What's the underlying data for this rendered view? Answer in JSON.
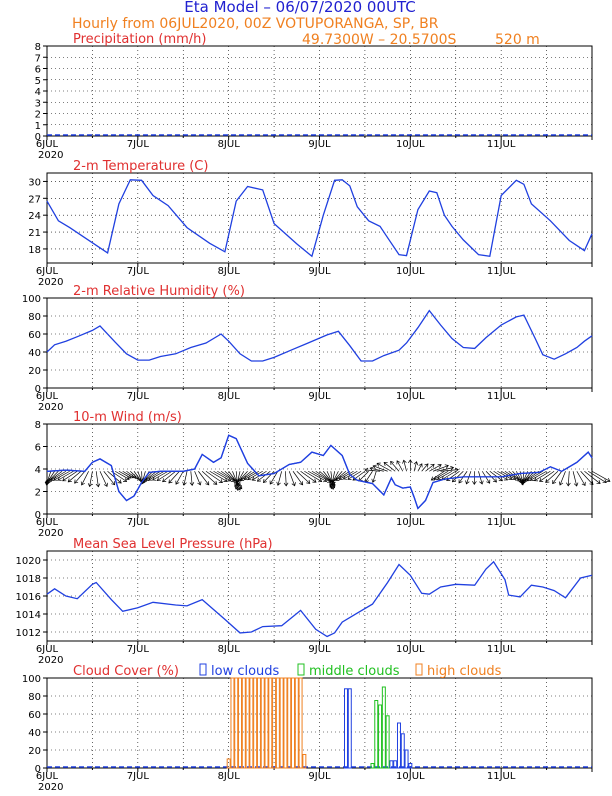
{
  "header": {
    "title": "Eta Model – 06/07/2020 00UTC",
    "subtitle": "Hourly from 06JUL2020, 00Z   VOTUPORANGA, SP, BR",
    "coords": "49.7300W – 20.5700S",
    "elevation": "520  m"
  },
  "colors": {
    "title": "#2020d0",
    "panel_title": "#e03030",
    "subtitle": "#f08020",
    "line": "#2040e0",
    "low": "#2040e0",
    "middle": "#20c020",
    "high": "#f08020",
    "arrow": "#000000"
  },
  "x_ticks": [
    "6JUL",
    "7JUL",
    "8JUL",
    "9JUL",
    "10JUL",
    "11JUL"
  ],
  "x_year": "2020",
  "chart_data": [
    {
      "type": "bar",
      "title": "Precipitation (mm/h)",
      "ylim": [
        0,
        8
      ],
      "yticks": [
        0,
        1,
        2,
        3,
        4,
        5,
        6,
        7,
        8
      ],
      "x": [
        0,
        135
      ],
      "values": [
        0,
        0
      ]
    },
    {
      "type": "line",
      "title": "2-m Temperature (C)",
      "ylim": [
        15.5,
        31.5
      ],
      "yticks": [
        18,
        21,
        24,
        27,
        30
      ],
      "points": [
        [
          0,
          26.5
        ],
        [
          3,
          23
        ],
        [
          6,
          21.8
        ],
        [
          10,
          20
        ],
        [
          16,
          17.3
        ],
        [
          19,
          26
        ],
        [
          22,
          30.3
        ],
        [
          25,
          30.2
        ],
        [
          28,
          27.5
        ],
        [
          32,
          25.7
        ],
        [
          37,
          21.8
        ],
        [
          43,
          19
        ],
        [
          47,
          17.5
        ],
        [
          50,
          26.5
        ],
        [
          53,
          29.1
        ],
        [
          57,
          28.5
        ],
        [
          60,
          22.5
        ],
        [
          66,
          18.9
        ],
        [
          70,
          16.7
        ],
        [
          73,
          24
        ],
        [
          76,
          30.2
        ],
        [
          78,
          30.3
        ],
        [
          80,
          29.2
        ],
        [
          82,
          25.5
        ],
        [
          85,
          23
        ],
        [
          88,
          22
        ],
        [
          90,
          20
        ],
        [
          93,
          17
        ],
        [
          95,
          16.8
        ],
        [
          98,
          25
        ],
        [
          101,
          28.3
        ],
        [
          103,
          28
        ],
        [
          105,
          24
        ],
        [
          107,
          22
        ],
        [
          110,
          19.6
        ],
        [
          114,
          17
        ],
        [
          117,
          16.7
        ],
        [
          120,
          27.5
        ],
        [
          124,
          30.2
        ],
        [
          126,
          29.5
        ],
        [
          128,
          26
        ],
        [
          133,
          23
        ],
        [
          138,
          19.5
        ],
        [
          142,
          17.7
        ],
        [
          144,
          20.7
        ]
      ]
    },
    {
      "type": "line",
      "title": "2-m Relative Humidity (%)",
      "ylim": [
        0,
        100
      ],
      "yticks": [
        0,
        20,
        40,
        60,
        80,
        100
      ],
      "points": [
        [
          0,
          40
        ],
        [
          2,
          48
        ],
        [
          5,
          52
        ],
        [
          8,
          57
        ],
        [
          12,
          64
        ],
        [
          14,
          69
        ],
        [
          18,
          51
        ],
        [
          21,
          38
        ],
        [
          24,
          31
        ],
        [
          27,
          31
        ],
        [
          30,
          35
        ],
        [
          34,
          38
        ],
        [
          38,
          45
        ],
        [
          42,
          50
        ],
        [
          46,
          60
        ],
        [
          48,
          52
        ],
        [
          51,
          38
        ],
        [
          54,
          30
        ],
        [
          57,
          30
        ],
        [
          60,
          34
        ],
        [
          65,
          43
        ],
        [
          69,
          50
        ],
        [
          74,
          59
        ],
        [
          77,
          63
        ],
        [
          80,
          47
        ],
        [
          83,
          30
        ],
        [
          86,
          30
        ],
        [
          89,
          36
        ],
        [
          93,
          42
        ],
        [
          95,
          50
        ],
        [
          98,
          67
        ],
        [
          101,
          86
        ],
        [
          104,
          70
        ],
        [
          107,
          55
        ],
        [
          110,
          45
        ],
        [
          113,
          44
        ],
        [
          116,
          56
        ],
        [
          120,
          70
        ],
        [
          124,
          79
        ],
        [
          126,
          81
        ],
        [
          129,
          55
        ],
        [
          131,
          37
        ],
        [
          134,
          32
        ],
        [
          137,
          38
        ],
        [
          140,
          45
        ],
        [
          142,
          52
        ],
        [
          144,
          58
        ]
      ]
    },
    {
      "type": "line",
      "title": "10-m Wind (m/s)",
      "ylim": [
        0,
        8
      ],
      "yticks": [
        0,
        2,
        4,
        6,
        8
      ],
      "points": [
        [
          0,
          3.8
        ],
        [
          5,
          3.9
        ],
        [
          10,
          3.8
        ],
        [
          12,
          4.6
        ],
        [
          14,
          4.9
        ],
        [
          17,
          4.3
        ],
        [
          19,
          2
        ],
        [
          21,
          1.2
        ],
        [
          23,
          1.6
        ],
        [
          25,
          2.8
        ],
        [
          27,
          3.7
        ],
        [
          30,
          3.8
        ],
        [
          36,
          3.8
        ],
        [
          39,
          4
        ],
        [
          41,
          5.3
        ],
        [
          44,
          4.6
        ],
        [
          46,
          5
        ],
        [
          48,
          7
        ],
        [
          50,
          6.7
        ],
        [
          53,
          4.5
        ],
        [
          56,
          3.4
        ],
        [
          60,
          3.6
        ],
        [
          64,
          4.4
        ],
        [
          67,
          4.6
        ],
        [
          70,
          5.5
        ],
        [
          73,
          5.2
        ],
        [
          75,
          6.1
        ],
        [
          78,
          5.2
        ],
        [
          80,
          3.5
        ],
        [
          82,
          3
        ],
        [
          86,
          2.7
        ],
        [
          89,
          1.7
        ],
        [
          91,
          3.2
        ],
        [
          92,
          2.6
        ],
        [
          94,
          2.3
        ],
        [
          96,
          2.4
        ],
        [
          97,
          1.5
        ],
        [
          98,
          0.5
        ],
        [
          100,
          1.2
        ],
        [
          102,
          2.8
        ],
        [
          105,
          3.1
        ],
        [
          110,
          3.3
        ],
        [
          120,
          3.3
        ],
        [
          125,
          3.6
        ],
        [
          130,
          3.7
        ],
        [
          133,
          4.2
        ],
        [
          136,
          3.8
        ],
        [
          140,
          4.6
        ],
        [
          143,
          5.5
        ],
        [
          144,
          5
        ]
      ],
      "arrow_every_hours": 1
    },
    {
      "type": "line",
      "title": "Mean Sea Level Pressure (hPa)",
      "ylim": [
        1011,
        1021
      ],
      "yticks": [
        1012,
        1014,
        1016,
        1018,
        1020
      ],
      "points": [
        [
          0,
          1016.2
        ],
        [
          2,
          1016.8
        ],
        [
          5,
          1016
        ],
        [
          8,
          1015.7
        ],
        [
          12,
          1017.3
        ],
        [
          13,
          1017.5
        ],
        [
          17,
          1015.6
        ],
        [
          20,
          1014.3
        ],
        [
          24,
          1014.7
        ],
        [
          28,
          1015.3
        ],
        [
          34,
          1015
        ],
        [
          37,
          1014.9
        ],
        [
          41,
          1015.6
        ],
        [
          47,
          1013.4
        ],
        [
          51,
          1011.9
        ],
        [
          54,
          1012
        ],
        [
          57,
          1012.6
        ],
        [
          62,
          1012.7
        ],
        [
          67,
          1014.4
        ],
        [
          71,
          1012.3
        ],
        [
          74,
          1011.5
        ],
        [
          76,
          1011.9
        ],
        [
          78,
          1013.1
        ],
        [
          82,
          1014.1
        ],
        [
          86,
          1015.1
        ],
        [
          90,
          1017.5
        ],
        [
          93,
          1019.5
        ],
        [
          96,
          1018.3
        ],
        [
          99,
          1016.3
        ],
        [
          101,
          1016.2
        ],
        [
          104,
          1017
        ],
        [
          108,
          1017.3
        ],
        [
          113,
          1017.2
        ],
        [
          116,
          1019
        ],
        [
          118,
          1019.8
        ],
        [
          121,
          1017.8
        ],
        [
          122,
          1016.1
        ],
        [
          125,
          1015.9
        ],
        [
          128,
          1017.2
        ],
        [
          131,
          1017
        ],
        [
          134,
          1016.6
        ],
        [
          137,
          1015.8
        ],
        [
          141,
          1018
        ],
        [
          144,
          1018.3
        ]
      ]
    },
    {
      "type": "bar",
      "title": "Cloud Cover (%)",
      "legend": [
        "low clouds",
        "middle clouds",
        "high clouds"
      ],
      "ylim": [
        0,
        100
      ],
      "yticks": [
        0,
        20,
        40,
        60,
        80,
        100
      ],
      "series": [
        {
          "name": "low clouds",
          "bars": [
            [
              78,
              0
            ],
            [
              79,
              88
            ],
            [
              80,
              88
            ],
            [
              81,
              0
            ],
            [
              91,
              8
            ],
            [
              92,
              8
            ],
            [
              93,
              50
            ],
            [
              94,
              38
            ],
            [
              95,
              20
            ],
            [
              96,
              5
            ]
          ]
        },
        {
          "name": "middle clouds",
          "bars": [
            [
              86,
              5
            ],
            [
              87,
              75
            ],
            [
              88,
              70
            ],
            [
              89,
              90
            ],
            [
              90,
              58
            ]
          ]
        },
        {
          "name": "high clouds",
          "bars": [
            [
              48,
              10
            ],
            [
              49,
              100
            ],
            [
              50,
              100
            ],
            [
              51,
              100
            ],
            [
              52,
              100
            ],
            [
              53,
              100
            ],
            [
              54,
              100
            ],
            [
              55,
              100
            ],
            [
              56,
              100
            ],
            [
              57,
              100
            ],
            [
              58,
              100
            ],
            [
              59,
              100
            ],
            [
              60,
              100
            ],
            [
              61,
              100
            ],
            [
              62,
              100
            ],
            [
              63,
              100
            ],
            [
              64,
              100
            ],
            [
              65,
              100
            ],
            [
              66,
              100
            ],
            [
              67,
              100
            ],
            [
              68,
              15
            ]
          ]
        }
      ]
    }
  ]
}
